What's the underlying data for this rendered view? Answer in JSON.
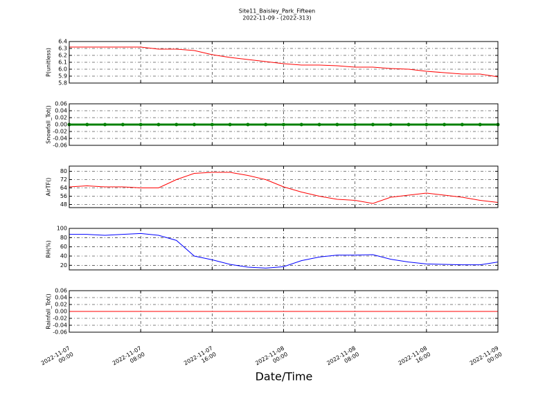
{
  "chart_data": [
    {
      "type": "line",
      "title": "Site11_Baisley_Park_Fifteen",
      "subtitle": "2022-11-09 - (2022-313)",
      "ylabel": "P(unitless)",
      "x": [
        "2022-11-07 00:00",
        "2022-11-07 02:00",
        "2022-11-07 04:00",
        "2022-11-07 06:00",
        "2022-11-07 08:00",
        "2022-11-07 10:00",
        "2022-11-07 12:00",
        "2022-11-07 14:00",
        "2022-11-07 16:00",
        "2022-11-07 18:00",
        "2022-11-07 20:00",
        "2022-11-07 22:00",
        "2022-11-08 00:00",
        "2022-11-08 02:00",
        "2022-11-08 04:00",
        "2022-11-08 06:00",
        "2022-11-08 08:00",
        "2022-11-08 10:00",
        "2022-11-08 12:00",
        "2022-11-08 14:00",
        "2022-11-08 16:00",
        "2022-11-08 18:00",
        "2022-11-08 20:00",
        "2022-11-08 22:00",
        "2022-11-09 00:00"
      ],
      "values": [
        6.32,
        6.32,
        6.32,
        6.32,
        6.32,
        6.29,
        6.29,
        6.27,
        6.21,
        6.17,
        6.14,
        6.11,
        6.08,
        6.06,
        6.06,
        6.05,
        6.03,
        6.03,
        6.01,
        6.0,
        5.97,
        5.95,
        5.93,
        5.93,
        5.89
      ],
      "color": "#ff0000",
      "xlim": [
        "2022-11-07 00:00",
        "2022-11-09 00:00"
      ],
      "xticks": [
        "2022-11-07 00:00",
        "2022-11-07 08:00",
        "2022-11-07 16:00",
        "2022-11-08 00:00",
        "2022-11-08 08:00",
        "2022-11-08 16:00",
        "2022-11-09 00:00"
      ],
      "ylim": [
        5.8,
        6.4
      ],
      "yticks": [
        5.8,
        5.9,
        {
          "value": 6,
          "label": "6.0"
        },
        6.1,
        6.2,
        6.3,
        6.4
      ],
      "grid": true
    },
    {
      "type": "line",
      "ylabel": "Snowfall_Tot()",
      "markers": true,
      "x": [
        "2022-11-07 00:00",
        "2022-11-07 02:00",
        "2022-11-07 04:00",
        "2022-11-07 06:00",
        "2022-11-07 08:00",
        "2022-11-07 10:00",
        "2022-11-07 12:00",
        "2022-11-07 14:00",
        "2022-11-07 16:00",
        "2022-11-07 18:00",
        "2022-11-07 20:00",
        "2022-11-07 22:00",
        "2022-11-08 00:00",
        "2022-11-08 02:00",
        "2022-11-08 04:00",
        "2022-11-08 06:00",
        "2022-11-08 08:00",
        "2022-11-08 10:00",
        "2022-11-08 12:00",
        "2022-11-08 14:00",
        "2022-11-08 16:00",
        "2022-11-08 18:00",
        "2022-11-08 20:00",
        "2022-11-08 22:00",
        "2022-11-09 00:00"
      ],
      "values": [
        0,
        0,
        0,
        0,
        0,
        0,
        0,
        0,
        0,
        0,
        0,
        0,
        0,
        0,
        0,
        0,
        0,
        0,
        0,
        0,
        0,
        0,
        0,
        0,
        0
      ],
      "color": "#008000",
      "xlim": [
        "2022-11-07 00:00",
        "2022-11-09 00:00"
      ],
      "xticks": [
        "2022-11-07 00:00",
        "2022-11-07 08:00",
        "2022-11-07 16:00",
        "2022-11-08 00:00",
        "2022-11-08 08:00",
        "2022-11-08 16:00",
        "2022-11-09 00:00"
      ],
      "ylim": [
        -0.06,
        0.06
      ],
      "yticks": [
        -0.06,
        -0.04,
        -0.02,
        {
          "value": 0,
          "label": "0.00"
        },
        0.02,
        0.04,
        0.06
      ],
      "grid": true
    },
    {
      "type": "line",
      "ylabel": "AirTF()",
      "x": [
        "2022-11-07 00:00",
        "2022-11-07 02:00",
        "2022-11-07 04:00",
        "2022-11-07 06:00",
        "2022-11-07 08:00",
        "2022-11-07 10:00",
        "2022-11-07 12:00",
        "2022-11-07 14:00",
        "2022-11-07 16:00",
        "2022-11-07 18:00",
        "2022-11-07 20:00",
        "2022-11-07 22:00",
        "2022-11-08 00:00",
        "2022-11-08 02:00",
        "2022-11-08 04:00",
        "2022-11-08 06:00",
        "2022-11-08 08:00",
        "2022-11-08 10:00",
        "2022-11-08 12:00",
        "2022-11-08 14:00",
        "2022-11-08 16:00",
        "2022-11-08 18:00",
        "2022-11-08 20:00",
        "2022-11-08 22:00",
        "2022-11-09 00:00"
      ],
      "values": [
        65,
        66,
        65,
        65,
        64,
        64,
        72,
        78,
        79,
        79,
        76,
        72,
        65,
        60,
        56,
        53,
        52,
        49,
        55,
        57,
        59,
        57,
        55,
        52,
        50
      ],
      "color": "#ff0000",
      "xlim": [
        "2022-11-07 00:00",
        "2022-11-09 00:00"
      ],
      "xticks": [
        "2022-11-07 00:00",
        "2022-11-07 08:00",
        "2022-11-07 16:00",
        "2022-11-08 00:00",
        "2022-11-08 08:00",
        "2022-11-08 16:00",
        "2022-11-09 00:00"
      ],
      "ylim": [
        45,
        85
      ],
      "yticks": [
        48,
        56,
        64,
        72,
        80
      ],
      "grid": true
    },
    {
      "type": "line",
      "ylabel": "RH(%)",
      "x": [
        "2022-11-07 00:00",
        "2022-11-07 02:00",
        "2022-11-07 04:00",
        "2022-11-07 06:00",
        "2022-11-07 08:00",
        "2022-11-07 10:00",
        "2022-11-07 12:00",
        "2022-11-07 14:00",
        "2022-11-07 16:00",
        "2022-11-07 18:00",
        "2022-11-07 20:00",
        "2022-11-07 22:00",
        "2022-11-08 00:00",
        "2022-11-08 02:00",
        "2022-11-08 04:00",
        "2022-11-08 06:00",
        "2022-11-08 08:00",
        "2022-11-08 10:00",
        "2022-11-08 12:00",
        "2022-11-08 14:00",
        "2022-11-08 16:00",
        "2022-11-08 18:00",
        "2022-11-08 20:00",
        "2022-11-08 22:00",
        "2022-11-09 00:00"
      ],
      "values": [
        87,
        87,
        85,
        87,
        89,
        85,
        74,
        40,
        32,
        22,
        16,
        14,
        17,
        30,
        38,
        42,
        42,
        43,
        33,
        27,
        23,
        22,
        21,
        21,
        27
      ],
      "color": "#0000ff",
      "xlim": [
        "2022-11-07 00:00",
        "2022-11-09 00:00"
      ],
      "xticks": [
        "2022-11-07 00:00",
        "2022-11-07 08:00",
        "2022-11-07 16:00",
        "2022-11-08 00:00",
        "2022-11-08 08:00",
        "2022-11-08 16:00",
        "2022-11-09 00:00"
      ],
      "ylim": [
        10,
        100
      ],
      "yticks": [
        20,
        40,
        60,
        80,
        100
      ],
      "grid": true
    },
    {
      "type": "line",
      "ylabel": "Rainfall_Tot()",
      "xlabel": "Date/Time",
      "x": [
        "2022-11-07 00:00",
        "2022-11-07 02:00",
        "2022-11-07 04:00",
        "2022-11-07 06:00",
        "2022-11-07 08:00",
        "2022-11-07 10:00",
        "2022-11-07 12:00",
        "2022-11-07 14:00",
        "2022-11-07 16:00",
        "2022-11-07 18:00",
        "2022-11-07 20:00",
        "2022-11-07 22:00",
        "2022-11-08 00:00",
        "2022-11-08 02:00",
        "2022-11-08 04:00",
        "2022-11-08 06:00",
        "2022-11-08 08:00",
        "2022-11-08 10:00",
        "2022-11-08 12:00",
        "2022-11-08 14:00",
        "2022-11-08 16:00",
        "2022-11-08 18:00",
        "2022-11-08 20:00",
        "2022-11-08 22:00",
        "2022-11-09 00:00"
      ],
      "values": [
        0,
        0,
        0,
        0,
        0,
        0,
        0,
        0,
        0,
        0,
        0,
        0,
        0,
        0,
        0,
        0,
        0,
        0,
        0,
        0,
        0,
        0,
        0,
        0,
        0
      ],
      "color": "#ff0000",
      "xlim": [
        "2022-11-07 00:00",
        "2022-11-09 00:00"
      ],
      "xticks": [
        "2022-11-07 00:00",
        "2022-11-07 08:00",
        "2022-11-07 16:00",
        "2022-11-08 00:00",
        "2022-11-08 08:00",
        "2022-11-08 16:00",
        "2022-11-09 00:00"
      ],
      "xtick_labels": true,
      "ylim": [
        -0.06,
        0.06
      ],
      "yticks": [
        -0.06,
        -0.04,
        -0.02,
        {
          "value": 0,
          "label": "0.00"
        },
        0.02,
        0.04,
        0.06
      ],
      "grid": true
    }
  ]
}
